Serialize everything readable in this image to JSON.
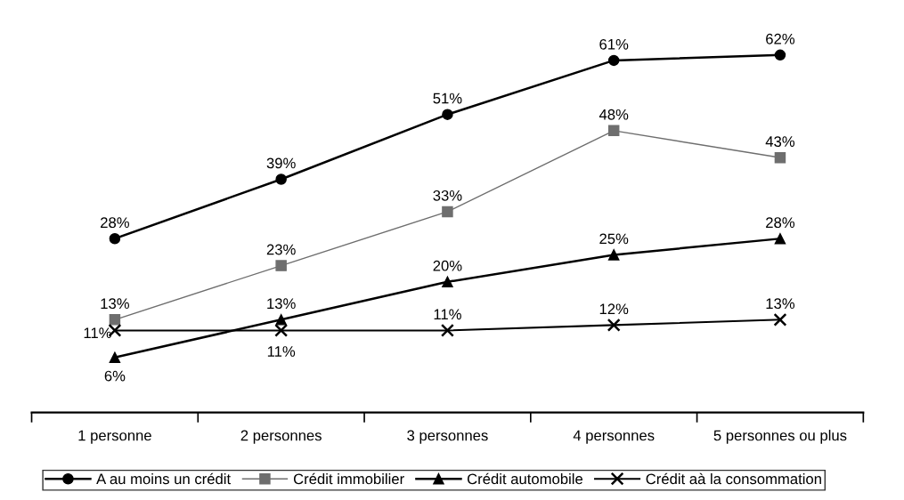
{
  "chart_data": {
    "type": "line",
    "categories": [
      "1 personne",
      "2 personnes",
      "3 personnes",
      "4 personnes",
      "5 personnes ou plus"
    ],
    "series": [
      {
        "name": "A au moins un crédit",
        "color": "#000000",
        "marker": "circle",
        "values": [
          28,
          39,
          51,
          61,
          62
        ],
        "value_labels": [
          "28%",
          "39%",
          "51%",
          "61%",
          "62%"
        ]
      },
      {
        "name": "Crédit immobilier",
        "color": "#6e6e6e",
        "marker": "square",
        "values": [
          13,
          23,
          33,
          48,
          43
        ],
        "value_labels": [
          "13%",
          "23%",
          "33%",
          "48%",
          "43%"
        ]
      },
      {
        "name": "Crédit automobile",
        "color": "#000000",
        "marker": "triangle",
        "values": [
          6,
          13,
          20,
          25,
          28
        ],
        "value_labels": [
          "6%",
          "13%",
          "20%",
          "25%",
          "28%"
        ]
      },
      {
        "name": "Crédit aà la consommation",
        "color": "#000000",
        "marker": "cross",
        "values": [
          11,
          11,
          11,
          12,
          13
        ],
        "value_labels": [
          "11%",
          "11%",
          "11%",
          "12%",
          "13%"
        ]
      }
    ],
    "legend": "bottom",
    "grid": false,
    "tick_labels": "x",
    "line_style": "solid"
  }
}
